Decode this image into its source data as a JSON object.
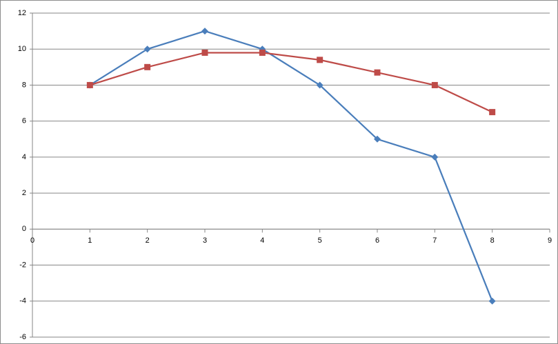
{
  "chart_data": {
    "type": "line",
    "x": [
      1,
      2,
      3,
      4,
      5,
      6,
      7,
      8
    ],
    "series": [
      {
        "color": "#4a7ebb",
        "marker": "diamond",
        "values": [
          8,
          10,
          11,
          10,
          8,
          5,
          4,
          -4
        ]
      },
      {
        "color": "#be4b48",
        "marker": "square",
        "values": [
          8,
          9,
          9.8,
          9.8,
          9.4,
          8.7,
          8,
          6.5
        ]
      }
    ],
    "xlim": [
      0,
      9
    ],
    "xticks": [
      0,
      1,
      2,
      3,
      4,
      5,
      6,
      7,
      8,
      9
    ],
    "ylim": [
      -6,
      12
    ],
    "yticks": [
      -6,
      -4,
      -2,
      0,
      2,
      4,
      6,
      8,
      10,
      12
    ],
    "grid": true
  }
}
